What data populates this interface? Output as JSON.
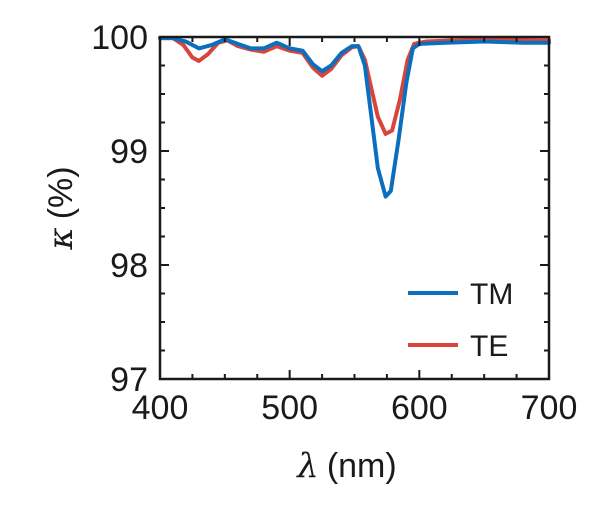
{
  "chart_data": {
    "type": "line",
    "title": "",
    "xlabel_symbol": "λ",
    "xlabel_unit": "(nm)",
    "ylabel_symbol": "κ",
    "ylabel_unit": "(%)",
    "xlim": [
      400,
      700
    ],
    "ylim": [
      97,
      100
    ],
    "xticks": [
      400,
      500,
      600,
      700
    ],
    "yticks": [
      97,
      98,
      99,
      100
    ],
    "grid": false,
    "legend_position": "bottom-right",
    "series": [
      {
        "name": "TM",
        "color": "#0b6fbe",
        "points": [
          [
            400,
            99.99
          ],
          [
            410,
            99.99
          ],
          [
            420,
            99.96
          ],
          [
            430,
            99.9
          ],
          [
            440,
            99.93
          ],
          [
            450,
            99.98
          ],
          [
            460,
            99.94
          ],
          [
            470,
            99.9
          ],
          [
            480,
            99.9
          ],
          [
            490,
            99.95
          ],
          [
            500,
            99.9
          ],
          [
            510,
            99.88
          ],
          [
            518,
            99.76
          ],
          [
            525,
            99.7
          ],
          [
            532,
            99.75
          ],
          [
            540,
            99.86
          ],
          [
            548,
            99.92
          ],
          [
            553,
            99.92
          ],
          [
            558,
            99.75
          ],
          [
            563,
            99.3
          ],
          [
            568,
            98.85
          ],
          [
            574,
            98.6
          ],
          [
            578,
            98.65
          ],
          [
            584,
            99.1
          ],
          [
            590,
            99.6
          ],
          [
            595,
            99.9
          ],
          [
            600,
            99.94
          ],
          [
            620,
            99.95
          ],
          [
            650,
            99.96
          ],
          [
            680,
            99.95
          ],
          [
            700,
            99.95
          ]
        ]
      },
      {
        "name": "TE",
        "color": "#d9453a",
        "points": [
          [
            400,
            99.99
          ],
          [
            410,
            99.99
          ],
          [
            418,
            99.93
          ],
          [
            425,
            99.82
          ],
          [
            430,
            99.79
          ],
          [
            437,
            99.85
          ],
          [
            445,
            99.95
          ],
          [
            452,
            99.97
          ],
          [
            460,
            99.92
          ],
          [
            470,
            99.89
          ],
          [
            480,
            99.87
          ],
          [
            490,
            99.92
          ],
          [
            500,
            99.88
          ],
          [
            510,
            99.86
          ],
          [
            518,
            99.73
          ],
          [
            525,
            99.66
          ],
          [
            532,
            99.72
          ],
          [
            540,
            99.84
          ],
          [
            548,
            99.91
          ],
          [
            553,
            99.92
          ],
          [
            558,
            99.8
          ],
          [
            563,
            99.55
          ],
          [
            568,
            99.3
          ],
          [
            574,
            99.15
          ],
          [
            579,
            99.18
          ],
          [
            585,
            99.45
          ],
          [
            591,
            99.8
          ],
          [
            596,
            99.94
          ],
          [
            605,
            99.96
          ],
          [
            650,
            99.98
          ],
          [
            700,
            99.97
          ]
        ]
      }
    ]
  }
}
